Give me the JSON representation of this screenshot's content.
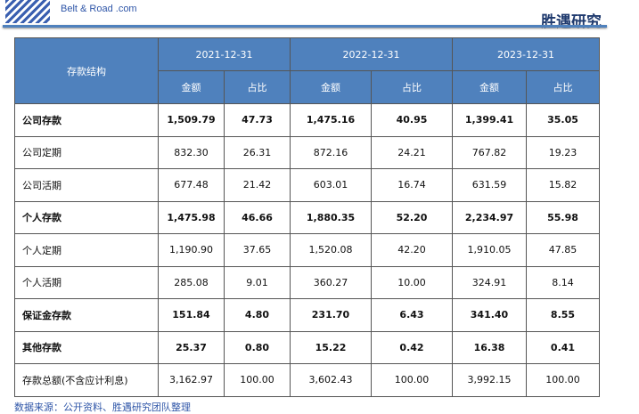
{
  "header": {
    "logo_text": "Belt & Road .com",
    "brand": "胜遇研究"
  },
  "table": {
    "corner": "存款结构",
    "dates": [
      "2021-12-31",
      "2022-12-31",
      "2023-12-31"
    ],
    "sub": [
      "金额",
      "占比"
    ],
    "rows": [
      {
        "name": "公司存款",
        "bold": true,
        "v": [
          "1,509.79",
          "47.73",
          "1,475.16",
          "40.95",
          "1,399.41",
          "35.05"
        ]
      },
      {
        "name": "公司定期",
        "bold": false,
        "v": [
          "832.30",
          "26.31",
          "872.16",
          "24.21",
          "767.82",
          "19.23"
        ]
      },
      {
        "name": "公司活期",
        "bold": false,
        "v": [
          "677.48",
          "21.42",
          "603.01",
          "16.74",
          "631.59",
          "15.82"
        ]
      },
      {
        "name": "个人存款",
        "bold": true,
        "v": [
          "1,475.98",
          "46.66",
          "1,880.35",
          "52.20",
          "2,234.97",
          "55.98"
        ]
      },
      {
        "name": "个人定期",
        "bold": false,
        "v": [
          "1,190.90",
          "37.65",
          "1,520.08",
          "42.20",
          "1,910.05",
          "47.85"
        ]
      },
      {
        "name": "个人活期",
        "bold": false,
        "v": [
          "285.08",
          "9.01",
          "360.27",
          "10.00",
          "324.91",
          "8.14"
        ]
      },
      {
        "name": "保证金存款",
        "bold": true,
        "v": [
          "151.84",
          "4.80",
          "231.70",
          "6.43",
          "341.40",
          "8.55"
        ]
      },
      {
        "name": "其他存款",
        "bold": true,
        "v": [
          "25.37",
          "0.80",
          "15.22",
          "0.42",
          "16.38",
          "0.41"
        ]
      },
      {
        "name": "存款总额(不含应计利息)",
        "bold": false,
        "v": [
          "3,162.97",
          "100.00",
          "3,602.43",
          "100.00",
          "3,992.15",
          "100.00"
        ]
      }
    ]
  },
  "source": "数据来源：公开资料、胜遇研究团队整理",
  "colors": {
    "header_bg": "#4f81bd"
  }
}
